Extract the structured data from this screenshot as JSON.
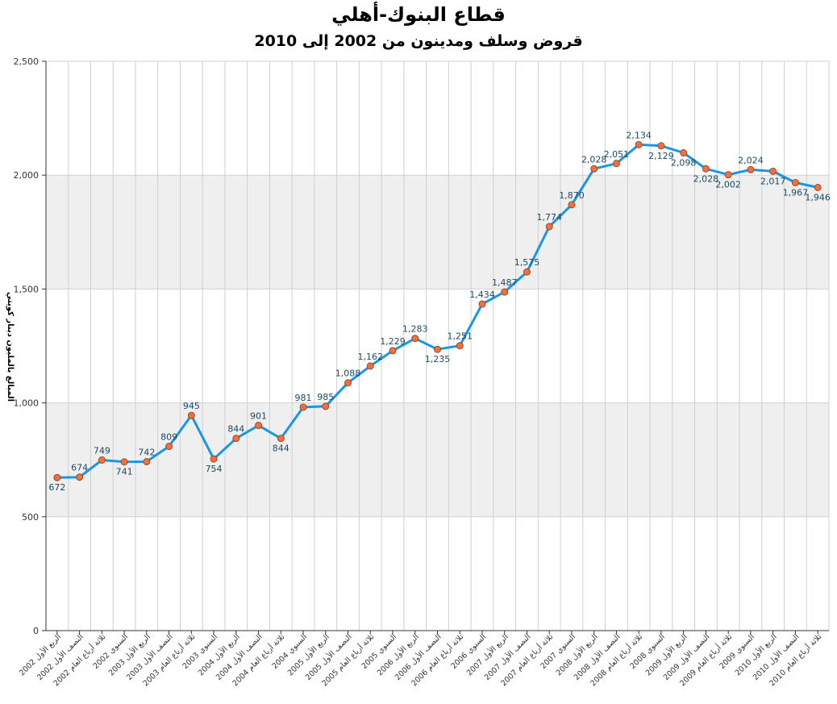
{
  "chart_data": {
    "type": "line",
    "title": "قطاع البنوك-أهلي",
    "subtitle": "قروض وسلف ومدينون من 2002 إلى 2010",
    "ylabel": "المبالغ بالمليون دينار كويتي",
    "xlabel": "",
    "ylim": [
      0,
      2500
    ],
    "yticks": [
      "0",
      "500",
      "1,000",
      "1,500",
      "2,000",
      "2,500"
    ],
    "ytick_values": [
      0,
      500,
      1000,
      1500,
      2000,
      2500
    ],
    "grid": true,
    "line_color": "#1a96e6",
    "marker_color": "#f07040",
    "band_color": "#efefef",
    "categories": [
      "الربع الأول 2002",
      "النصف الأول 2002",
      "ثلاثة أرباع العام 2002",
      "السنوي 2002",
      "الربع الأول 2003",
      "النصف الأول 2003",
      "ثلاثة أرباع العام 2003",
      "السنوي 2003",
      "الربع الأول 2004",
      "النصف الأول 2004",
      "ثلاثة أرباع العام 2004",
      "السنوي 2004",
      "الربع الأول 2005",
      "النصف الأول 2005",
      "ثلاثة أرباع العام 2005",
      "السنوي 2005",
      "الربع الأول 2006",
      "النصف الأول 2006",
      "ثلاثة أرباع العام 2006",
      "السنوي 2006",
      "الربع الأول 2007",
      "النصف الأول 2007",
      "ثلاثة أرباع العام 2007",
      "السنوي 2007",
      "الربع الأول 2008",
      "النصف الأول 2008",
      "ثلاثة أرباع العام 2008",
      "السنوي 2008",
      "الربع الأول 2009",
      "النصف الأول 2009",
      "ثلاثة أرباع العام 2009",
      "السنوي 2009",
      "الربع الأول 2010",
      "النصف الأول 2010",
      "ثلاثة أرباع العام 2010"
    ],
    "values": [
      672,
      674,
      749,
      741,
      742,
      809,
      945,
      754,
      844,
      901,
      844,
      981,
      985,
      1088,
      1162,
      1229,
      1283,
      1235,
      1251,
      1434,
      1487,
      1575,
      1774,
      1870,
      2028,
      2051,
      2134,
      2129,
      2098,
      2028,
      2002,
      2024,
      2017,
      1967,
      1946
    ],
    "value_labels": [
      "672",
      "674",
      "749",
      "741",
      "742",
      "809",
      "945",
      "754",
      "844",
      "901",
      "844",
      "981",
      "985",
      "1,088",
      "1,162",
      "1,229",
      "1,283",
      "1,235",
      "1,251",
      "1,434",
      "1,487",
      "1,575",
      "1,774",
      "1,870",
      "2,028",
      "2,051",
      "2,134",
      "2,129",
      "2,098",
      "2,028",
      "2,002",
      "2,024",
      "2,017",
      "1,967",
      "1,946"
    ]
  }
}
